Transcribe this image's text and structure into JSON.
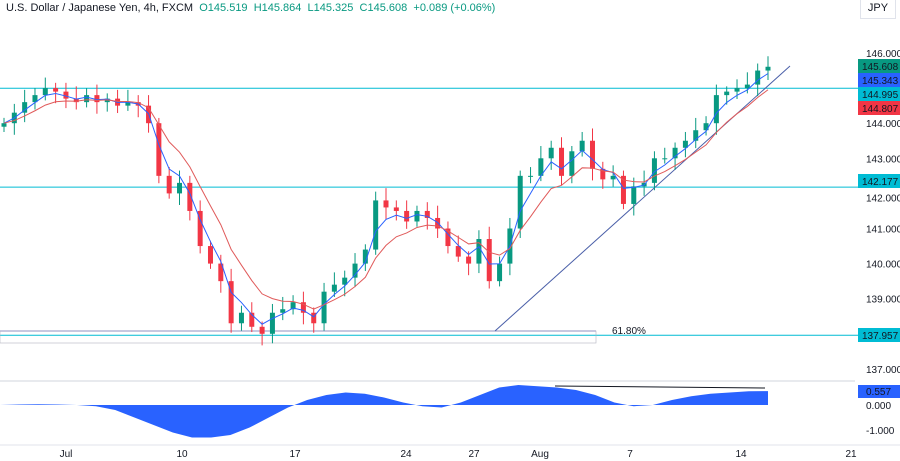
{
  "header": {
    "symbol": "U.S. Dollar / Japanese Yen, 4h, FXCM",
    "open": "O145.519",
    "high": "H145.864",
    "low": "L145.325",
    "close": "C145.608",
    "change": "+0.089 (+0.06%)"
  },
  "currency": "JPY",
  "chart_data": {
    "type": "candlestick",
    "price_axis": {
      "ticks": [
        "146.000",
        "144.000",
        "143.000",
        "142.000",
        "141.000",
        "140.000",
        "139.000",
        "137.000"
      ],
      "range": [
        136.8,
        146.5
      ]
    },
    "time_axis": {
      "ticks": [
        "Jul",
        "10",
        "17",
        "24",
        "27",
        "Aug",
        "7",
        "14",
        "21"
      ]
    },
    "closes": [
      144.0,
      144.3,
      144.6,
      144.8,
      145.0,
      144.9,
      144.7,
      144.6,
      144.8,
      144.6,
      144.7,
      144.5,
      144.6,
      144.5,
      144.0,
      142.5,
      142.0,
      142.3,
      141.5,
      140.5,
      140.0,
      139.5,
      138.3,
      138.6,
      138.2,
      138.0,
      138.6,
      138.7,
      138.9,
      138.6,
      138.3,
      139.2,
      139.4,
      139.6,
      140.0,
      140.4,
      141.8,
      141.6,
      141.5,
      141.2,
      141.5,
      141.3,
      141.0,
      140.5,
      140.2,
      140.0,
      140.7,
      139.5,
      140.0,
      141.0,
      142.5,
      142.5,
      143.0,
      143.3,
      142.5,
      143.2,
      143.5,
      142.7,
      142.4,
      142.5,
      141.7,
      142.2,
      142.3,
      143.0,
      143.0,
      143.3,
      143.5,
      143.8,
      144.0,
      144.8,
      144.9,
      145.0,
      145.1,
      145.5,
      145.608
    ],
    "levels": [
      {
        "value": 144.995,
        "label": "144.995",
        "color": "#00bcd4"
      },
      {
        "value": 142.177,
        "label": "142.177",
        "color": "#00bcd4"
      },
      {
        "value": 137.957,
        "label": "137.957",
        "color": "#00bcd4"
      }
    ],
    "price_labels": [
      {
        "label": "145.608",
        "color": "#089981"
      },
      {
        "label": "145.343",
        "color": "#2962ff"
      },
      {
        "label": "144.807",
        "color": "#f23645"
      }
    ],
    "fib_label": "61.80%",
    "oscillator": {
      "ticks": [
        "0.000",
        "-1.000"
      ],
      "last": "0.557",
      "values": [
        0,
        0.02,
        0.03,
        0.02,
        0,
        -0.05,
        -0.2,
        -0.5,
        -0.8,
        -1.1,
        -1.3,
        -1.3,
        -1.2,
        -0.9,
        -0.5,
        -0.1,
        0.2,
        0.4,
        0.5,
        0.45,
        0.3,
        0.1,
        -0.05,
        -0.1,
        0.1,
        0.4,
        0.7,
        0.8,
        0.75,
        0.7,
        0.6,
        0.4,
        0.1,
        -0.05,
        0,
        0.2,
        0.35,
        0.45,
        0.5,
        0.55,
        0.557
      ]
    }
  }
}
